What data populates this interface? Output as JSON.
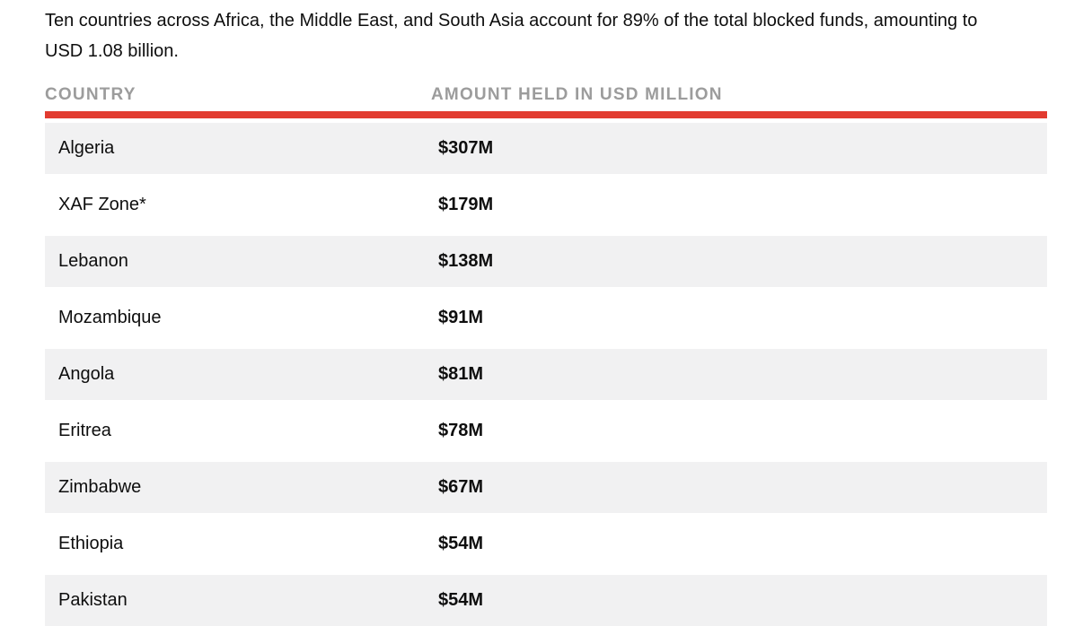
{
  "intro": "Ten countries across Africa, the Middle East, and South Asia account for 89% of the total blocked funds, amounting to USD 1.08 billion.",
  "table": {
    "columns": [
      "COUNTRY",
      "AMOUNT HELD IN USD MILLION"
    ],
    "rows": [
      {
        "country": "Algeria",
        "amount": "$307M"
      },
      {
        "country": "XAF Zone*",
        "amount": "$179M"
      },
      {
        "country": "Lebanon",
        "amount": "$138M"
      },
      {
        "country": "Mozambique",
        "amount": "$91M"
      },
      {
        "country": "Angola",
        "amount": "$81M"
      },
      {
        "country": "Eritrea",
        "amount": "$78M"
      },
      {
        "country": "Zimbabwe",
        "amount": "$67M"
      },
      {
        "country": "Ethiopia",
        "amount": "$54M"
      },
      {
        "country": "Pakistan",
        "amount": "$54M"
      }
    ]
  },
  "colors": {
    "accent_red": "#e23b30",
    "row_stripe": "#f1f1f2",
    "header_text": "#9c9c9c",
    "body_text": "#0e0e0e"
  },
  "chart_data": {
    "type": "table",
    "title": "Ten countries across Africa, the Middle East, and South Asia account for 89% of the total blocked funds, amounting to USD 1.08 billion.",
    "columns": [
      "COUNTRY",
      "AMOUNT HELD IN USD MILLION"
    ],
    "categories": [
      "Algeria",
      "XAF Zone*",
      "Lebanon",
      "Mozambique",
      "Angola",
      "Eritrea",
      "Zimbabwe",
      "Ethiopia",
      "Pakistan"
    ],
    "values": [
      307,
      179,
      138,
      91,
      81,
      78,
      67,
      54,
      54
    ],
    "value_unit": "USD million",
    "total_blocked_share_pct": 89,
    "total_blocked_usd_billion": 1.08,
    "layout": "striped rows, red divider under header, last row partially cut off at bottom edge"
  }
}
